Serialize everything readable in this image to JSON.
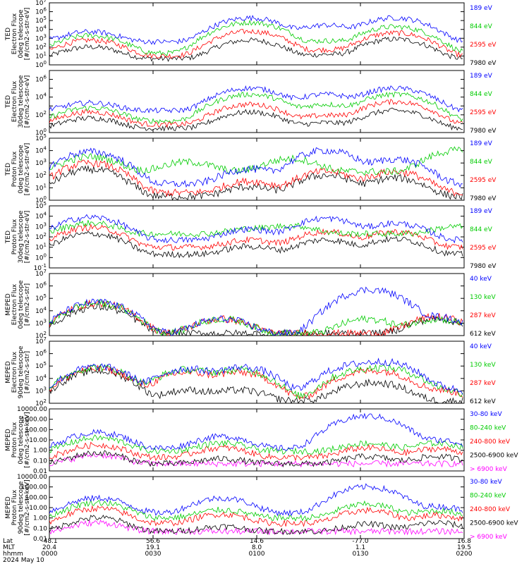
{
  "chart_data": {
    "type": "line",
    "x_axis": {
      "row_labels": [
        "Lat",
        "MLT",
        "hhmm",
        "2024 May 10"
      ],
      "ticks": [
        {
          "lat": "-48.1",
          "mlt": "20.4",
          "hhmm": "0000"
        },
        {
          "lat": "56.6",
          "mlt": "19.1",
          "hhmm": "0030"
        },
        {
          "lat": "14.6",
          "mlt": "8.0",
          "hhmm": "0100"
        },
        {
          "lat": "-77.0",
          "mlt": "1.1",
          "hhmm": "0130"
        },
        {
          "lat": "16.8",
          "mlt": "19.5",
          "hhmm": "0200"
        }
      ],
      "range_minutes": [
        0,
        120
      ]
    },
    "panels": [
      {
        "instrument": "TED",
        "ylabel": [
          "TED",
          "Electron Flux",
          "0deg telescope",
          "[#/cm2-s-str-eV]"
        ],
        "ylog": [
          0,
          7
        ],
        "yticks": [
          "10^0",
          "10^1",
          "10^2",
          "10^3",
          "10^4",
          "10^5",
          "10^6",
          "10^7"
        ],
        "series": [
          {
            "name": "7980 eV",
            "color": "#000000",
            "base": 5,
            "peaks": [
              [
                12,
                100
              ],
              [
                58,
                600
              ],
              [
                80,
                10
              ],
              [
                100,
                800
              ]
            ]
          },
          {
            "name": "2595 eV",
            "color": "#ff0000",
            "base": 10,
            "peaks": [
              [
                12,
                600
              ],
              [
                58,
                6000
              ],
              [
                80,
                40
              ],
              [
                100,
                4000
              ]
            ]
          },
          {
            "name": "844 eV",
            "color": "#00cc00",
            "base": 20,
            "peaks": [
              [
                12,
                2000
              ],
              [
                58,
                60000
              ],
              [
                80,
                500
              ],
              [
                100,
                20000
              ]
            ]
          },
          {
            "name": "189 eV",
            "color": "#0000ff",
            "base": 400,
            "peaks": [
              [
                12,
                5000
              ],
              [
                58,
                200000
              ],
              [
                80,
                30000
              ],
              [
                100,
                200000
              ]
            ]
          }
        ]
      },
      {
        "instrument": "TED",
        "ylabel": [
          "TED",
          "Electron Flux",
          "30deg telescope",
          "[#/cm2-s-str-eV]"
        ],
        "ylog": [
          0,
          7
        ],
        "yticks": [
          "10^0",
          "",
          "10^2",
          "",
          "10^4",
          "",
          "10^6",
          ""
        ],
        "series": [
          {
            "name": "7980 eV",
            "color": "#000000",
            "base": 3,
            "peaks": [
              [
                12,
                40
              ],
              [
                58,
                200
              ],
              [
                80,
                10
              ],
              [
                100,
                300
              ]
            ]
          },
          {
            "name": "2595 eV",
            "color": "#ff0000",
            "base": 8,
            "peaks": [
              [
                12,
                200
              ],
              [
                58,
                1500
              ],
              [
                80,
                80
              ],
              [
                100,
                3000
              ]
            ]
          },
          {
            "name": "844 eV",
            "color": "#00cc00",
            "base": 20,
            "peaks": [
              [
                12,
                600
              ],
              [
                58,
                20000
              ],
              [
                80,
                1500
              ],
              [
                100,
                20000
              ]
            ]
          },
          {
            "name": "189 eV",
            "color": "#0000ff",
            "base": 300,
            "peaks": [
              [
                12,
                2000
              ],
              [
                58,
                100000
              ],
              [
                80,
                20000
              ],
              [
                100,
                100000
              ]
            ]
          }
        ]
      },
      {
        "instrument": "TED",
        "ylabel": [
          "TED",
          "Proton Flux",
          "0deg telescope",
          "[#/cm2-s-str-eV]"
        ],
        "ylog": [
          0,
          5
        ],
        "yticks": [
          "10^0",
          "10^1",
          "10^2",
          "10^3",
          "10^4",
          "10^5"
        ],
        "series": [
          {
            "name": "7980 eV",
            "color": "#000000",
            "base": 2,
            "peaks": [
              [
                12,
                300
              ],
              [
                58,
                10
              ],
              [
                80,
                100
              ],
              [
                100,
                60
              ]
            ]
          },
          {
            "name": "2595 eV",
            "color": "#ff0000",
            "base": 4,
            "peaks": [
              [
                12,
                1000
              ],
              [
                58,
                30
              ],
              [
                80,
                200
              ],
              [
                100,
                200
              ]
            ]
          },
          {
            "name": "844 eV",
            "color": "#00cc00",
            "base": 200,
            "peaks": [
              [
                12,
                3000
              ],
              [
                40,
                1000
              ],
              [
                70,
                2000
              ],
              [
                118,
                10000
              ]
            ]
          },
          {
            "name": "189 eV",
            "color": "#0000ff",
            "base": 20,
            "peaks": [
              [
                12,
                8000
              ],
              [
                58,
                300
              ],
              [
                80,
                10000
              ],
              [
                100,
                2000
              ]
            ]
          }
        ]
      },
      {
        "instrument": "TED",
        "ylabel": [
          "TED",
          "Proton Flux",
          "30deg telescope",
          "[#/cm2-s-str-eV]"
        ],
        "ylog": [
          -1,
          5
        ],
        "yticks": [
          "10^-1",
          "10^0",
          "10^1",
          "10^2",
          "10^3",
          "10^4",
          "10^5"
        ],
        "series": [
          {
            "name": "7980 eV",
            "color": "#000000",
            "base": 2,
            "peaks": [
              [
                12,
                200
              ],
              [
                58,
                10
              ],
              [
                80,
                50
              ],
              [
                100,
                60
              ]
            ]
          },
          {
            "name": "2595 eV",
            "color": "#ff0000",
            "base": 10,
            "peaks": [
              [
                12,
                800
              ],
              [
                58,
                40
              ],
              [
                80,
                300
              ],
              [
                100,
                300
              ]
            ]
          },
          {
            "name": "844 eV",
            "color": "#00cc00",
            "base": 200,
            "peaks": [
              [
                12,
                2000
              ],
              [
                58,
                400
              ],
              [
                70,
                1000
              ],
              [
                118,
                800
              ]
            ]
          },
          {
            "name": "189 eV",
            "color": "#0000ff",
            "base": 50,
            "peaks": [
              [
                12,
                8000
              ],
              [
                58,
                500
              ],
              [
                80,
                6000
              ],
              [
                100,
                2000
              ]
            ]
          }
        ]
      },
      {
        "instrument": "MEPED",
        "ylabel": [
          "MEPED",
          "Electron Flux",
          "0deg telescope",
          "[#/cm2-s-str]"
        ],
        "ylog": [
          2,
          7
        ],
        "yticks": [
          "10^2",
          "10^3",
          "10^4",
          "10^5",
          "10^6",
          "10^7"
        ],
        "series": [
          {
            "name": "612 keV",
            "color": "#000000",
            "base": 150,
            "peaks": [
              [
                14,
                20000
              ],
              [
                112,
                2000
              ]
            ]
          },
          {
            "name": "287 keV",
            "color": "#ff0000",
            "base": 150,
            "peaks": [
              [
                14,
                40000
              ],
              [
                50,
                2000
              ],
              [
                112,
                3000
              ]
            ]
          },
          {
            "name": "130 keV",
            "color": "#00cc00",
            "base": 150,
            "peaks": [
              [
                14,
                40000
              ],
              [
                50,
                2000
              ],
              [
                92,
                2000
              ],
              [
                112,
                2000
              ]
            ]
          },
          {
            "name": "40 keV",
            "color": "#0000ff",
            "base": 150,
            "peaks": [
              [
                14,
                50000
              ],
              [
                50,
                2000
              ],
              [
                93,
                500000
              ],
              [
                112,
                3000
              ]
            ]
          }
        ]
      },
      {
        "instrument": "MEPED",
        "ylabel": [
          "MEPED",
          "Electron Flux",
          "90deg telescope",
          "[#/cm2-s-str]"
        ],
        "ylog": [
          2,
          7
        ],
        "yticks": [
          "10^2",
          "10^3",
          "10^4",
          "10^5",
          "10^6",
          "10^7"
        ],
        "series": [
          {
            "name": "612 keV",
            "color": "#000000",
            "base": 150,
            "peaks": [
              [
                14,
                40000
              ],
              [
                40,
                1000
              ],
              [
                55,
                1000
              ],
              [
                90,
                2000
              ],
              [
                96,
                3000
              ]
            ]
          },
          {
            "name": "287 keV",
            "color": "#ff0000",
            "base": 200,
            "peaks": [
              [
                14,
                60000
              ],
              [
                40,
                30000
              ],
              [
                55,
                30000
              ],
              [
                90,
                20000
              ],
              [
                96,
                30000
              ],
              [
                112,
                1000
              ]
            ]
          },
          {
            "name": "130 keV",
            "color": "#00cc00",
            "base": 200,
            "peaks": [
              [
                14,
                80000
              ],
              [
                40,
                50000
              ],
              [
                55,
                50000
              ],
              [
                90,
                40000
              ],
              [
                98,
                60000
              ],
              [
                112,
                1200
              ]
            ]
          },
          {
            "name": "40 keV",
            "color": "#0000ff",
            "base": 300,
            "peaks": [
              [
                14,
                90000
              ],
              [
                40,
                60000
              ],
              [
                56,
                80000
              ],
              [
                88,
                100000
              ],
              [
                97,
                200000
              ],
              [
                113,
                1500
              ]
            ]
          }
        ]
      },
      {
        "instrument": "MEPED",
        "ylabel": [
          "MEPED",
          "Proton Flux",
          "0deg telescope",
          "[#/cm2-s-str-keV]"
        ],
        "ylog": [
          -2,
          4
        ],
        "yticks": [
          "0.01",
          "0.10",
          "1.00",
          "10.00",
          "100.00",
          "1000.00",
          "10000.00"
        ],
        "series": [
          {
            "name": "> 6900 keV",
            "color": "#ff00ff",
            "base": 0.05,
            "peaks": [
              [
                14,
                0.3
              ]
            ]
          },
          {
            "name": "2500-6900 keV",
            "color": "#000000",
            "base": 0.05,
            "peaks": [
              [
                14,
                0.5
              ],
              [
                50,
                0.1
              ],
              [
                92,
                0.2
              ],
              [
                112,
                0.2
              ]
            ]
          },
          {
            "name": "240-800 keV",
            "color": "#ff0000",
            "base": 0.2,
            "peaks": [
              [
                14,
                3
              ],
              [
                50,
                1.5
              ],
              [
                92,
                1.5
              ],
              [
                112,
                1.2
              ]
            ]
          },
          {
            "name": "80-240 keV",
            "color": "#00cc00",
            "base": 0.8,
            "peaks": [
              [
                14,
                15
              ],
              [
                50,
                4
              ],
              [
                92,
                4
              ],
              [
                112,
                4
              ]
            ]
          },
          {
            "name": "30-80 keV",
            "color": "#0000ff",
            "base": 1.5,
            "peaks": [
              [
                14,
                50
              ],
              [
                50,
                20
              ],
              [
                92,
                2000
              ],
              [
                112,
                8
              ]
            ]
          }
        ]
      },
      {
        "instrument": "MEPED",
        "ylabel": [
          "MEPED",
          "Proton Flux",
          "90deg telescope",
          "[#/cm2-s-str-keV]"
        ],
        "ylog": [
          -2,
          4
        ],
        "yticks": [
          "0.01",
          "0.10",
          "1.00",
          "10.00",
          "100.00",
          "1000.00",
          "10000.00"
        ],
        "series": [
          {
            "name": "> 6900 keV",
            "color": "#ff00ff",
            "base": 0.05,
            "peaks": [
              [
                14,
                0.3
              ]
            ]
          },
          {
            "name": "2500-6900 keV",
            "color": "#000000",
            "base": 0.05,
            "peaks": [
              [
                14,
                1
              ],
              [
                50,
                0.1
              ],
              [
                92,
                0.2
              ],
              [
                112,
                0.3
              ]
            ]
          },
          {
            "name": "240-800 keV",
            "color": "#ff0000",
            "base": 0.3,
            "peaks": [
              [
                14,
                8
              ],
              [
                50,
                2
              ],
              [
                92,
                5
              ],
              [
                112,
                1.5
              ]
            ]
          },
          {
            "name": "80-240 keV",
            "color": "#00cc00",
            "base": 1,
            "peaks": [
              [
                14,
                30
              ],
              [
                50,
                5
              ],
              [
                92,
                20
              ],
              [
                112,
                4
              ]
            ]
          },
          {
            "name": "30-80 keV",
            "color": "#0000ff",
            "base": 3,
            "peaks": [
              [
                14,
                80
              ],
              [
                50,
                80
              ],
              [
                92,
                1000
              ],
              [
                112,
                10
              ]
            ]
          }
        ]
      }
    ]
  }
}
